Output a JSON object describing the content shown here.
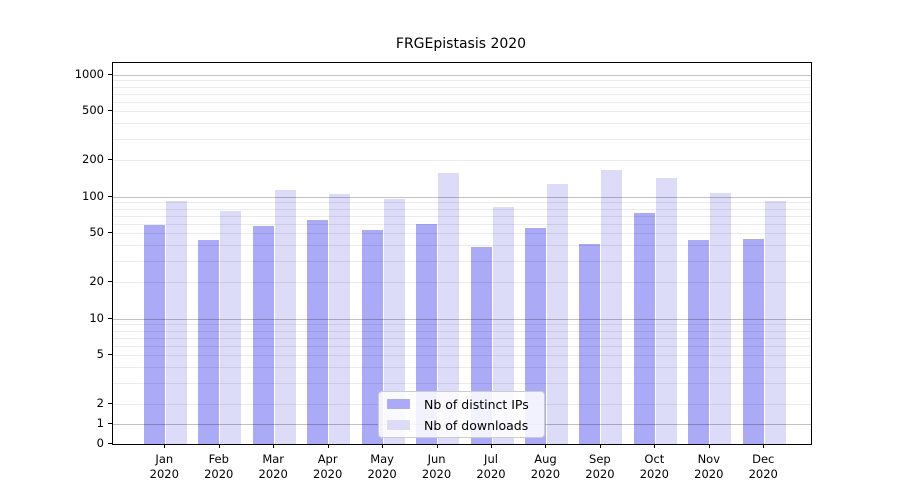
{
  "chart_data": {
    "type": "bar",
    "title": "FRGEpistasis 2020",
    "categories": [
      "Jan",
      "Feb",
      "Mar",
      "Apr",
      "May",
      "Jun",
      "Jul",
      "Aug",
      "Sep",
      "Oct",
      "Nov",
      "Dec"
    ],
    "category_year": "2020",
    "series": [
      {
        "name": "Nb of distinct IPs",
        "color": "#aaaaf6",
        "values": [
          59,
          44,
          58,
          64,
          53,
          60,
          39,
          55,
          41,
          73,
          44,
          45
        ]
      },
      {
        "name": "Nb of downloads",
        "color": "#dcdcf8",
        "values": [
          93,
          77,
          113,
          105,
          96,
          157,
          82,
          126,
          165,
          142,
          108,
          92
        ]
      }
    ],
    "y_axis": {
      "scale": "symlog",
      "ticks": [
        0,
        1,
        2,
        5,
        10,
        20,
        50,
        100,
        200,
        500,
        1000
      ],
      "range": [
        0,
        1200
      ]
    },
    "x_axis": {
      "tick_label_lines": 2
    },
    "grid": {
      "minor_on": true,
      "major_decades": [
        1,
        10,
        100,
        1000
      ],
      "minor_subs": [
        2,
        3,
        4,
        5,
        6,
        7,
        8,
        9
      ]
    },
    "legend": {
      "position": "inside-bottom-center"
    },
    "colors": {
      "grid_minor": "rgba(0,0,0,0.08)",
      "grid_major": "rgba(0,0,0,0.24)",
      "axis": "#000000",
      "background": "#ffffff"
    }
  }
}
